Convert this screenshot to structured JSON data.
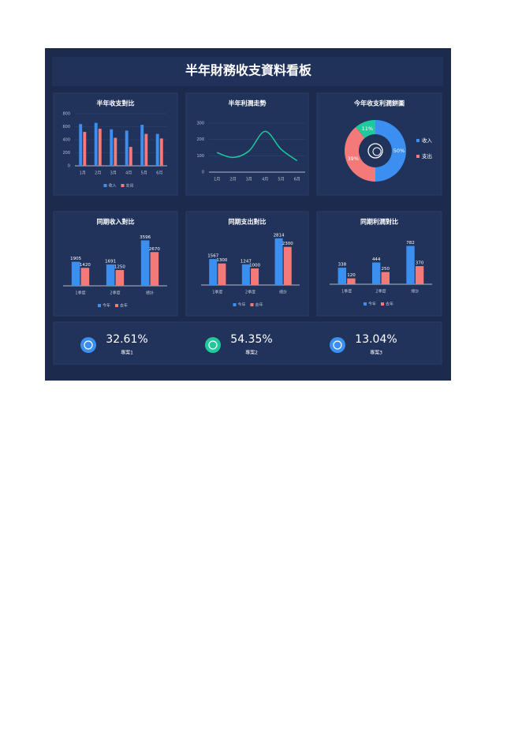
{
  "title": "半年財務收支資料看板",
  "chart_data": [
    {
      "type": "bar",
      "title": "半年收支對比",
      "categories": [
        "1月",
        "2月",
        "3月",
        "4月",
        "5月",
        "6月"
      ],
      "series": [
        {
          "name": "收入",
          "color": "#3a8ff0",
          "values": [
            640,
            660,
            560,
            540,
            630,
            490
          ]
        },
        {
          "name": "支出",
          "color": "#f47a7a",
          "values": [
            520,
            570,
            430,
            290,
            490,
            420
          ]
        }
      ],
      "ylim": [
        0,
        800
      ],
      "yticks": [
        0,
        200,
        400,
        600,
        800
      ],
      "grid": true,
      "legend": "bottom"
    },
    {
      "type": "line",
      "title": "半年利潤走勢",
      "categories": [
        "1月",
        "2月",
        "3月",
        "4月",
        "5月",
        "6月"
      ],
      "values": [
        120,
        90,
        130,
        250,
        140,
        70
      ],
      "color": "#1fc99b",
      "ylim": [
        0,
        300
      ],
      "yticks": [
        0,
        100,
        200,
        300
      ],
      "grid": true,
      "smooth": true
    },
    {
      "type": "pie",
      "title": "今年收支利潤餅圖",
      "categories": [
        "收入",
        "支出",
        null
      ],
      "values": [
        50,
        39,
        11
      ],
      "value_labels": [
        "50%",
        "39%",
        "11%"
      ],
      "colors": [
        "#3a8ff0",
        "#f47a7a",
        "#1fc99b"
      ],
      "donut": true,
      "legend": "right"
    },
    {
      "type": "bar",
      "title": "同期收入對比",
      "categories": [
        "1季度",
        "2季度",
        "總計"
      ],
      "series": [
        {
          "name": "今年",
          "color": "#3a8ff0",
          "values": [
            1905,
            1691,
            3596
          ]
        },
        {
          "name": "去年",
          "color": "#f47a7a",
          "values": [
            1420,
            1250,
            2670
          ]
        }
      ],
      "ylim": [
        0,
        4000
      ],
      "data_labels": true,
      "legend": "bottom"
    },
    {
      "type": "bar",
      "title": "同期支出對比",
      "categories": [
        "1季度",
        "2季度",
        "總計"
      ],
      "series": [
        {
          "name": "今年",
          "color": "#3a8ff0",
          "values": [
            1567,
            1247,
            2814
          ]
        },
        {
          "name": "去年",
          "color": "#f47a7a",
          "values": [
            1300,
            1000,
            2300
          ]
        }
      ],
      "ylim": [
        0,
        3000
      ],
      "data_labels": true,
      "legend": "bottom"
    },
    {
      "type": "bar",
      "title": "同期利潤對比",
      "categories": [
        "1季度",
        "2季度",
        "總計"
      ],
      "series": [
        {
          "name": "今年",
          "color": "#3a8ff0",
          "values": [
            338,
            444,
            782
          ]
        },
        {
          "name": "去年",
          "color": "#f47a7a",
          "values": [
            120,
            250,
            370
          ]
        }
      ],
      "ylim": [
        0,
        1000
      ],
      "data_labels": true,
      "legend": "bottom"
    }
  ],
  "kpis": [
    {
      "value": "32.61%",
      "label": "專案1",
      "color": "#3a8ff0"
    },
    {
      "value": "54.35%",
      "label": "專案2",
      "color": "#1fc99b"
    },
    {
      "value": "13.04%",
      "label": "專案3",
      "color": "#3a8ff0"
    }
  ]
}
